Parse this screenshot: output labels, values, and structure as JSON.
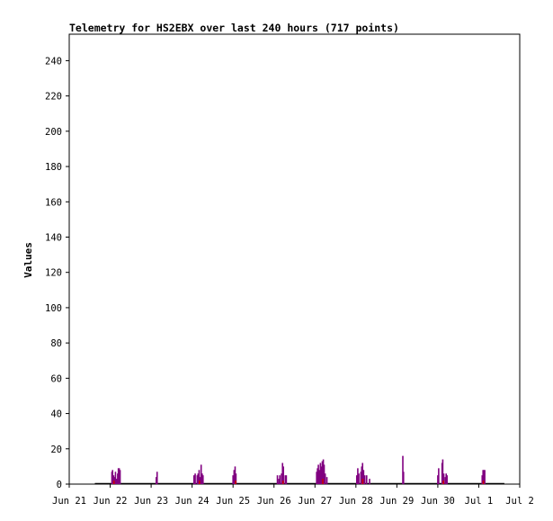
{
  "chart_data": {
    "type": "bar",
    "title": "Telemetry for HS2EBX over last 240 hours (717 points)",
    "xlabel": "",
    "ylabel": "Values",
    "ylim": [
      0,
      255
    ],
    "yticks": [
      0,
      20,
      40,
      60,
      80,
      100,
      120,
      140,
      160,
      180,
      200,
      220,
      240
    ],
    "xlim_hours": [
      0,
      264
    ],
    "xticks": [
      {
        "label": "Jun 21",
        "hour": 0
      },
      {
        "label": "Jun 22",
        "hour": 24
      },
      {
        "label": "Jun 23",
        "hour": 48
      },
      {
        "label": "Jun 24",
        "hour": 72
      },
      {
        "label": "Jun 25",
        "hour": 96
      },
      {
        "label": "Jun 26",
        "hour": 120
      },
      {
        "label": "Jun 27",
        "hour": 144
      },
      {
        "label": "Jun 28",
        "hour": 168
      },
      {
        "label": "Jun 29",
        "hour": 192
      },
      {
        "label": "Jun 30",
        "hour": 216
      },
      {
        "label": "Jul 1",
        "hour": 240
      },
      {
        "label": "Jul 2",
        "hour": 264
      }
    ],
    "grid": false,
    "colors": {
      "primary": "#800080",
      "secondary": "#cc0000",
      "baseline": "#000000"
    },
    "baseline_range_hours": [
      15,
      255
    ],
    "series": [
      {
        "color": "#800080",
        "points": [
          [
            25.0,
            7
          ],
          [
            25.4,
            8
          ],
          [
            26.0,
            5
          ],
          [
            26.6,
            4
          ],
          [
            27.1,
            7
          ],
          [
            27.8,
            3
          ],
          [
            28.4,
            6
          ],
          [
            28.8,
            9
          ],
          [
            29.3,
            9
          ],
          [
            29.8,
            8
          ],
          [
            51.0,
            4
          ],
          [
            51.5,
            7
          ],
          [
            73.1,
            5
          ],
          [
            73.8,
            6
          ],
          [
            75.0,
            5
          ],
          [
            75.5,
            6
          ],
          [
            76.1,
            8
          ],
          [
            76.8,
            4
          ],
          [
            77.3,
            11
          ],
          [
            77.9,
            6
          ],
          [
            78.4,
            5
          ],
          [
            96.0,
            5
          ],
          [
            96.6,
            8
          ],
          [
            97.2,
            10
          ],
          [
            97.7,
            6
          ],
          [
            122.0,
            5
          ],
          [
            122.8,
            3
          ],
          [
            123.4,
            5
          ],
          [
            124.4,
            6
          ],
          [
            125.0,
            12
          ],
          [
            125.5,
            10
          ],
          [
            126.6,
            5
          ],
          [
            127.2,
            5
          ],
          [
            145.0,
            7
          ],
          [
            145.5,
            9
          ],
          [
            146.0,
            11
          ],
          [
            146.6,
            8
          ],
          [
            147.2,
            12
          ],
          [
            147.8,
            10
          ],
          [
            148.3,
            13
          ],
          [
            148.9,
            14
          ],
          [
            149.4,
            11
          ],
          [
            150.0,
            6
          ],
          [
            151.0,
            4
          ],
          [
            168.5,
            5
          ],
          [
            169.1,
            9
          ],
          [
            169.7,
            6
          ],
          [
            170.9,
            7
          ],
          [
            171.4,
            10
          ],
          [
            171.9,
            12
          ],
          [
            172.5,
            8
          ],
          [
            173.2,
            5
          ],
          [
            174.3,
            5
          ],
          [
            176.0,
            3
          ],
          [
            195.5,
            16
          ],
          [
            195.9,
            7
          ],
          [
            216.0,
            5
          ],
          [
            216.5,
            9
          ],
          [
            218.5,
            12
          ],
          [
            218.9,
            14
          ],
          [
            219.5,
            6
          ],
          [
            220.4,
            4
          ],
          [
            220.9,
            6
          ],
          [
            221.4,
            5
          ],
          [
            242.0,
            5
          ],
          [
            242.5,
            8
          ],
          [
            243.0,
            8
          ],
          [
            243.5,
            8
          ]
        ]
      },
      {
        "color": "#cc0000",
        "points": [
          [
            26.2,
            2
          ],
          [
            76.3,
            2
          ],
          [
            97.5,
            2
          ],
          [
            125.3,
            2
          ],
          [
            148.6,
            3
          ],
          [
            172.0,
            3
          ],
          [
            219.3,
            2
          ],
          [
            242.7,
            2
          ]
        ]
      }
    ]
  }
}
